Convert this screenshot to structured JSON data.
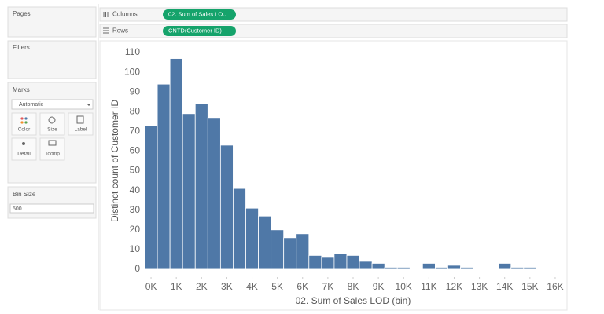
{
  "ui": {
    "pages": "Pages",
    "filters": "Filters",
    "marks": {
      "title": "Marks",
      "mark_type": "Automatic",
      "buttons": [
        "Color",
        "Size",
        "Label",
        "Detail",
        "Tooltip"
      ]
    },
    "parameter": {
      "title": "Bin Size",
      "value": "500"
    },
    "columns": {
      "label": "Columns",
      "pill": "02. Sum of Sales LO.."
    },
    "rows": {
      "label": "Rows",
      "pill": "CNTD(Customer ID)"
    }
  },
  "chart_data": {
    "type": "histogram",
    "x_label": "02. Sum of Sales LOD (bin)",
    "y_label": "Distinct count of Customer ID",
    "color": "#4f78a7",
    "bin_size": 500,
    "x": [
      0,
      500,
      1000,
      1500,
      2000,
      2500,
      3000,
      3500,
      4000,
      4500,
      5000,
      5500,
      6000,
      6500,
      7000,
      7500,
      8000,
      8500,
      9000,
      9500,
      10000,
      10500,
      11000,
      11500,
      12000,
      12500,
      13000,
      13500,
      14000,
      14500,
      15000,
      15500,
      16000
    ],
    "values": [
      73,
      94,
      107,
      79,
      84,
      77,
      63,
      41,
      31,
      27,
      20,
      16,
      18,
      7,
      6,
      8,
      7,
      4,
      3,
      1,
      1,
      0,
      3,
      1,
      2,
      1,
      0,
      0,
      3,
      1,
      1,
      0,
      0
    ],
    "xlim": [
      -375,
      16375
    ],
    "ylim": [
      -4,
      114
    ],
    "xticks": [
      {
        "value": 0,
        "label": "0K"
      },
      {
        "value": 1000,
        "label": "1K"
      },
      {
        "value": 2000,
        "label": "2K"
      },
      {
        "value": 3000,
        "label": "3K"
      },
      {
        "value": 4000,
        "label": "4K"
      },
      {
        "value": 5000,
        "label": "5K"
      },
      {
        "value": 6000,
        "label": "6K"
      },
      {
        "value": 7000,
        "label": "7K"
      },
      {
        "value": 8000,
        "label": "8K"
      },
      {
        "value": 9000,
        "label": "9K"
      },
      {
        "value": 10000,
        "label": "10K"
      },
      {
        "value": 11000,
        "label": "11K"
      },
      {
        "value": 12000,
        "label": "12K"
      },
      {
        "value": 13000,
        "label": "13K"
      },
      {
        "value": 14000,
        "label": "14K"
      },
      {
        "value": 15000,
        "label": "15K"
      },
      {
        "value": 16000,
        "label": "16K"
      }
    ],
    "yticks": [
      0,
      10,
      20,
      30,
      40,
      50,
      60,
      70,
      80,
      90,
      100,
      110
    ],
    "grid": false
  }
}
